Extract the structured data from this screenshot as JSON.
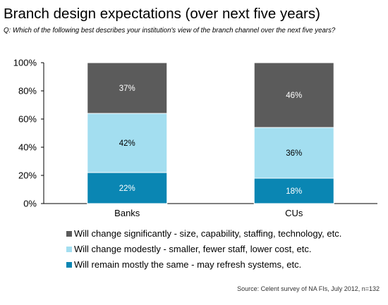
{
  "chart_data": {
    "type": "bar",
    "stacked": true,
    "title": "Branch design expectations (over next five years)",
    "subtitle": "Q: Which of the following best describes your institution's view of the branch channel over the next five years?",
    "categories": [
      "Banks",
      "CUs"
    ],
    "ylim": [
      0,
      100
    ],
    "yticks": [
      "0%",
      "20%",
      "40%",
      "60%",
      "80%",
      "100%"
    ],
    "series": [
      {
        "name": "Will remain mostly the same - may refresh systems, etc.",
        "values": [
          22,
          18
        ],
        "labels": [
          "22%",
          "18%"
        ],
        "color": "#0a86b3",
        "label_color": "#ffffff"
      },
      {
        "name": "Will change modestly - smaller, fewer staff, lower cost, etc.",
        "values": [
          42,
          36
        ],
        "labels": [
          "42%",
          "36%"
        ],
        "color": "#a3def0",
        "label_color": "#000000"
      },
      {
        "name": "Will change significantly - size, capability, staffing, technology, etc.",
        "values": [
          37,
          46
        ],
        "labels": [
          "37%",
          "46%"
        ],
        "color": "#5b5b5b",
        "label_color": "#ffffff"
      }
    ],
    "legend_position": "bottom",
    "grid": false,
    "source": "Source: Celent survey of NA FIs, July 2012, n=132"
  }
}
